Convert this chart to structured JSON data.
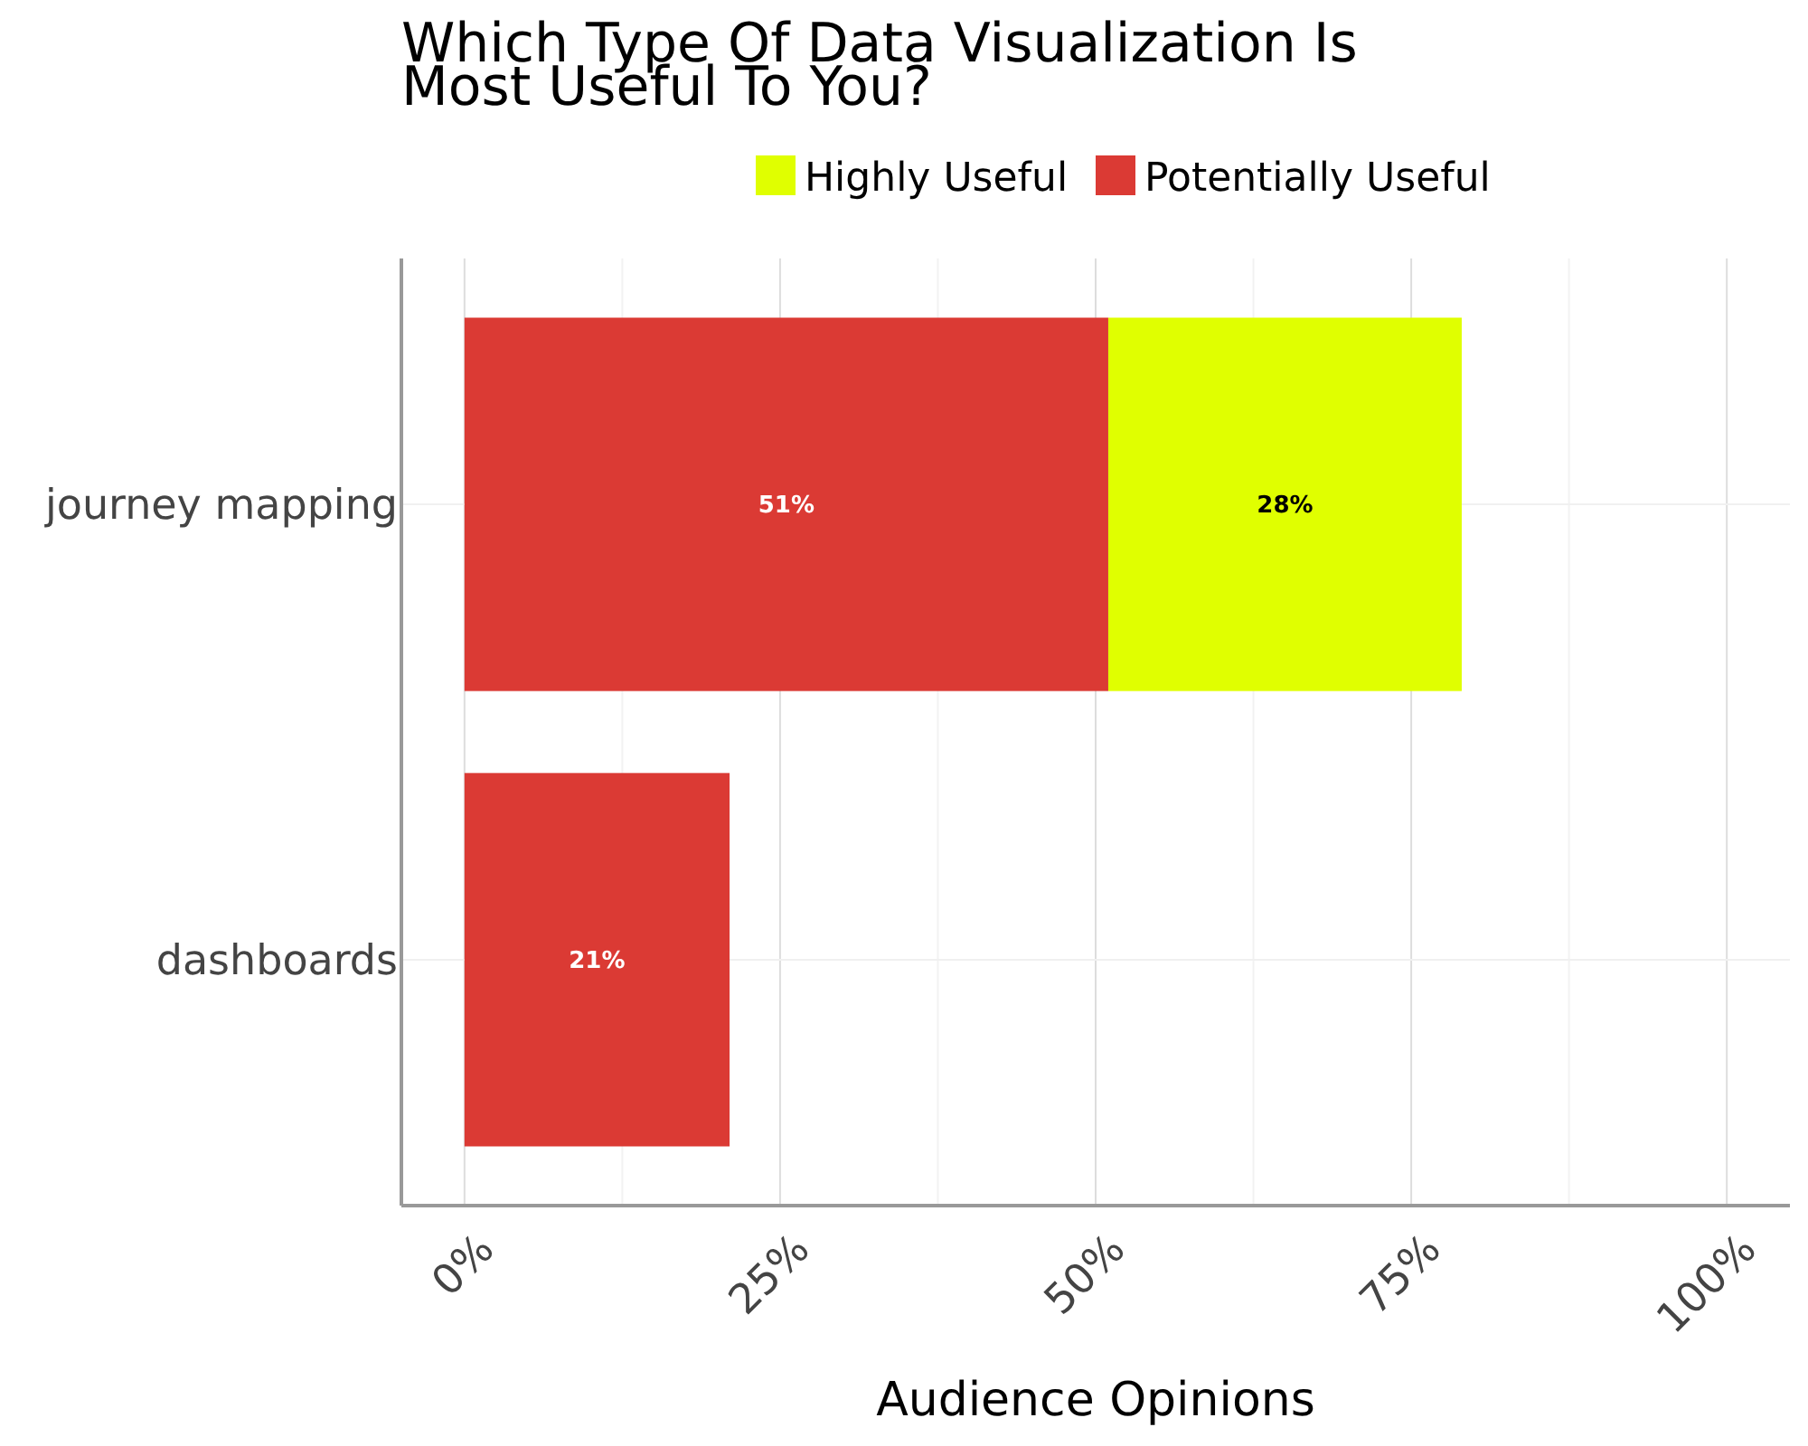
{
  "chart_data": {
    "type": "bar",
    "orientation": "horizontal",
    "stacked": true,
    "title": "Which Type Of Data Visualization Is Most Useful To You?",
    "xlabel": "Audience Opinions",
    "categories": [
      "journey mapping",
      "dashboards"
    ],
    "series": [
      {
        "name": "Potentially Useful",
        "color": "#db3a34",
        "values": [
          51,
          21
        ],
        "value_labels": [
          "51%",
          "21%"
        ]
      },
      {
        "name": "Highly Useful",
        "color": "#e0ff00",
        "values": [
          28,
          null
        ],
        "value_labels": [
          "28%",
          null
        ]
      }
    ],
    "xlim": [
      -5,
      105
    ],
    "xticks": [
      {
        "value": 0,
        "label": "0%"
      },
      {
        "value": 25,
        "label": "25%"
      },
      {
        "value": 50,
        "label": "50%"
      },
      {
        "value": 75,
        "label": "75%"
      },
      {
        "value": 100,
        "label": "100%"
      }
    ],
    "grid": true,
    "legend": "top"
  }
}
